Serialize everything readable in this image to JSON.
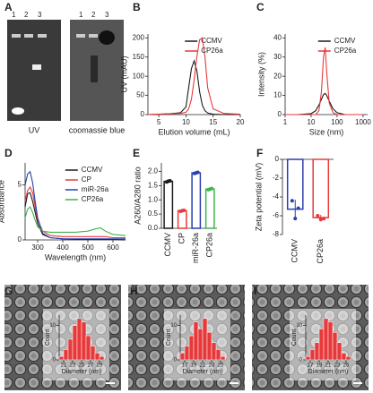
{
  "panel_letters": [
    "A",
    "B",
    "C",
    "D",
    "E",
    "F",
    "G",
    "H",
    "I"
  ],
  "gel": {
    "left_lanes": [
      "1",
      "2",
      "3"
    ],
    "right_lanes": [
      "1",
      "2",
      "3"
    ],
    "left_label": "UV",
    "right_label": "coomassie blue"
  },
  "chart_data": [
    {
      "type": "line",
      "ylabel": "UV (mAU)",
      "xlabel": "Elution volume (mL)",
      "legend": "upper right",
      "x": [
        3,
        5,
        7,
        9,
        10,
        10.5,
        11,
        11.5,
        12,
        12.5,
        13,
        13.5,
        14,
        15,
        17,
        20
      ],
      "series": [
        {
          "name": "CCMV",
          "color": "#1a1a1a",
          "values": [
            0,
            1,
            2,
            5,
            20,
            70,
            120,
            140,
            115,
            60,
            25,
            10,
            4,
            1,
            0,
            0
          ]
        },
        {
          "name": "CP26a",
          "color": "#e8393a",
          "values": [
            0,
            1,
            2,
            3,
            6,
            15,
            40,
            90,
            150,
            195,
            200,
            150,
            70,
            15,
            3,
            1
          ]
        }
      ],
      "xlim": [
        3,
        20
      ],
      "xticks": [
        5,
        10,
        15,
        20
      ],
      "ylim": [
        0,
        210
      ],
      "yticks": [
        0,
        50,
        100,
        150,
        200
      ]
    },
    {
      "type": "line",
      "ylabel": "Intensity (%)",
      "xlabel": "Size (nm)",
      "legend": "upper right",
      "xscale": "log",
      "x": [
        1,
        3,
        10,
        15,
        20,
        25,
        30,
        35,
        40,
        50,
        70,
        100,
        200,
        1000
      ],
      "series": [
        {
          "name": "CCMV",
          "color": "#1a1a1a",
          "values": [
            0,
            0,
            0.5,
            2,
            5,
            8,
            10.5,
            11,
            10,
            7,
            3,
            1,
            0,
            0
          ]
        },
        {
          "name": "CP26a",
          "color": "#e8393a",
          "values": [
            0,
            0,
            0,
            0,
            2,
            12,
            30,
            35,
            22,
            6,
            1,
            0,
            0,
            0
          ]
        }
      ],
      "xlim": [
        1,
        1500
      ],
      "xticks": [
        1,
        10,
        100,
        1000
      ],
      "ylim": [
        0,
        42
      ],
      "yticks": [
        0,
        10,
        20,
        30,
        40
      ]
    },
    {
      "type": "line",
      "ylabel": "Absorbance",
      "xlabel": "Wavelength (nm)",
      "legend": "upper right",
      "x": [
        250,
        260,
        270,
        280,
        290,
        300,
        320,
        350,
        400,
        450,
        500,
        530,
        550,
        570,
        600,
        650
      ],
      "series": [
        {
          "name": "CCMV",
          "color": "#1a1a1a",
          "values": [
            3,
            4.2,
            4.3,
            3.5,
            2.5,
            1.5,
            0.5,
            0.2,
            0.1,
            0.05,
            0.05,
            0.05,
            0.05,
            0.05,
            0.05,
            0
          ]
        },
        {
          "name": "CP",
          "color": "#e8393a",
          "values": [
            3.5,
            4.5,
            4.8,
            4.3,
            3,
            1.8,
            0.8,
            0.4,
            0.3,
            0.3,
            0.3,
            0.3,
            0.3,
            0.3,
            0.2,
            0.2
          ]
        },
        {
          "name": "miR-26a",
          "color": "#2b3fae",
          "values": [
            5,
            6,
            6.2,
            5.2,
            3.5,
            2,
            0.6,
            0.2,
            0.1,
            0.1,
            0.1,
            0.1,
            0.1,
            0.1,
            0.1,
            0.1
          ]
        },
        {
          "name": "CP26a",
          "color": "#3bb54a",
          "values": [
            2,
            2.8,
            3,
            2.5,
            1.8,
            1.2,
            0.8,
            0.7,
            0.7,
            0.7,
            0.8,
            1,
            1.1,
            0.8,
            0.5,
            0.4
          ]
        }
      ],
      "xlim": [
        250,
        650
      ],
      "xticks": [
        300,
        400,
        500,
        600
      ],
      "ylim": [
        0,
        7
      ],
      "yticks": [
        0,
        5
      ]
    },
    {
      "type": "bar",
      "ylabel": "A260/A280 ratio",
      "categories": [
        "CCMV",
        "CP",
        "miR-26a",
        "CP26a"
      ],
      "values": [
        1.65,
        0.62,
        1.95,
        1.38
      ],
      "replicates": [
        [
          1.63,
          1.66,
          1.67
        ],
        [
          0.6,
          0.62,
          0.63
        ],
        [
          1.93,
          1.95,
          1.97
        ],
        [
          1.36,
          1.38,
          1.4
        ]
      ],
      "colors": [
        "#1a1a1a",
        "#e8393a",
        "#2b3fae",
        "#3bb54a"
      ],
      "ylim": [
        0,
        2.3
      ],
      "yticks": [
        {
          "value": 0,
          "label": "0.0"
        },
        {
          "value": 0.5,
          "label": "0.5"
        },
        {
          "value": 1,
          "label": "1.0"
        },
        {
          "value": 1.5,
          "label": "1.5"
        },
        {
          "value": 2,
          "label": "2.0"
        }
      ]
    },
    {
      "type": "bar",
      "ylabel": "Zeta potential (mV)",
      "categories": [
        "CCMV",
        "CP26a"
      ],
      "values": [
        -5.3,
        -6.2
      ],
      "errors": [
        1.0,
        0.3
      ],
      "replicates": [
        [
          -4.4,
          -6.3,
          -5.2
        ],
        [
          -6.0,
          -6.4,
          -6.3
        ]
      ],
      "colors": [
        "#2b3fae",
        "#e8393a"
      ],
      "ylim": [
        -8,
        0
      ],
      "yticks": [
        0,
        -2,
        -4,
        -6,
        -8
      ]
    },
    {
      "type": "histogram",
      "xlabel": "Diameter (nm)",
      "ylabel": "Count",
      "color": "#e8393a",
      "bins": [
        20,
        21,
        22,
        23,
        24,
        25,
        26,
        27,
        28,
        29,
        30
      ],
      "counts": [
        1,
        3,
        6,
        10,
        12,
        11,
        7,
        4,
        2,
        1
      ],
      "xlim": [
        20,
        30
      ],
      "xticks": [
        21,
        23,
        25,
        27,
        29
      ],
      "ylim": [
        0,
        13
      ],
      "yticks": [
        0,
        10
      ]
    },
    {
      "type": "histogram",
      "xlabel": "Diameter (nm)",
      "ylabel": "Count",
      "color": "#e8393a",
      "bins": [
        16,
        17,
        18,
        19,
        20,
        21,
        22,
        23,
        24,
        25,
        26
      ],
      "counts": [
        2,
        4,
        7,
        11,
        9,
        12,
        8,
        5,
        3,
        1
      ],
      "xlim": [
        16,
        26
      ],
      "xticks": [
        17,
        19,
        21,
        23,
        25
      ],
      "ylim": [
        0,
        13
      ],
      "yticks": [
        0,
        10
      ]
    },
    {
      "type": "histogram",
      "xlabel": "Diameter (nm)",
      "ylabel": "Count",
      "color": "#e8393a",
      "bins": [
        16,
        17,
        18,
        19,
        20,
        21,
        22,
        23,
        24,
        25,
        26
      ],
      "counts": [
        1,
        3,
        5,
        9,
        12,
        11,
        8,
        5,
        2,
        1
      ],
      "xlim": [
        16,
        26
      ],
      "xticks": [
        17,
        19,
        21,
        23,
        25
      ],
      "ylim": [
        0,
        13
      ],
      "yticks": [
        0,
        10
      ]
    }
  ]
}
